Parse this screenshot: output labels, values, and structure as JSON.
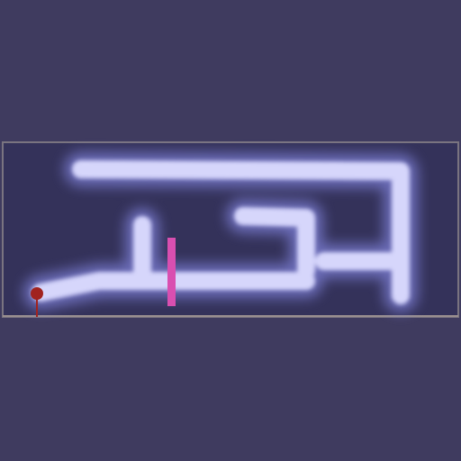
{
  "colors": {
    "background": "#3f3b5f",
    "board": "#34325a",
    "board_border": "#7a7480",
    "path_glow": "#7d7fd6",
    "path_core": "#dcdcff",
    "marker": "#d94fb0",
    "player_ball": "#a1231f",
    "player_stem": "#a1231f"
  },
  "game": {
    "scene": "maze-board",
    "elements": [
      "glowing-path",
      "pink-barrier",
      "red-ball-player"
    ]
  }
}
